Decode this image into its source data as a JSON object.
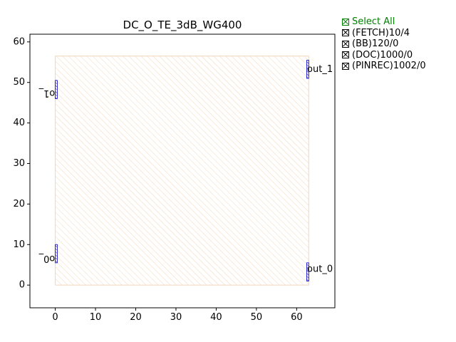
{
  "chart_data": {
    "type": "scatter",
    "title": "DC_O_TE_3dB_WG400",
    "xlabel": "",
    "ylabel": "",
    "xlim": [
      -6.3,
      69.5
    ],
    "ylim": [
      -5.6,
      61.9
    ],
    "xticks": [
      0,
      10,
      20,
      30,
      40,
      50,
      60
    ],
    "yticks": [
      0,
      10,
      20,
      30,
      40,
      50,
      60
    ],
    "grid": false,
    "legend_position": "outside top-right",
    "footprint": {
      "x": [
        0,
        63
      ],
      "y": [
        0,
        56.5
      ],
      "color": "#f5d5b8"
    },
    "ports": [
      {
        "label": "o1_",
        "x": [
          0,
          0.5
        ],
        "y": [
          46,
          50.5
        ],
        "label_x": -4.3,
        "label_y": 47.4,
        "rotated": true
      },
      {
        "label": "o0_",
        "x": [
          0,
          0.5
        ],
        "y": [
          5.5,
          10
        ],
        "label_x": -4.3,
        "label_y": 6.6,
        "rotated": true
      },
      {
        "label": "out_1",
        "x": [
          62.5,
          63
        ],
        "y": [
          51,
          55.5
        ],
        "label_x": 62.6,
        "label_y": 53.2,
        "rotated": false
      },
      {
        "label": "out_0",
        "x": [
          62.5,
          63
        ],
        "y": [
          1,
          5.5
        ],
        "label_x": 62.6,
        "label_y": 3.9,
        "rotated": false
      }
    ],
    "port_color": "#0000cc"
  },
  "legend": {
    "select_all": "Select All",
    "items": [
      "(FETCH)10/4",
      "(BB)120/0",
      "(DOC)1000/0",
      "(PINREC)1002/0"
    ]
  }
}
